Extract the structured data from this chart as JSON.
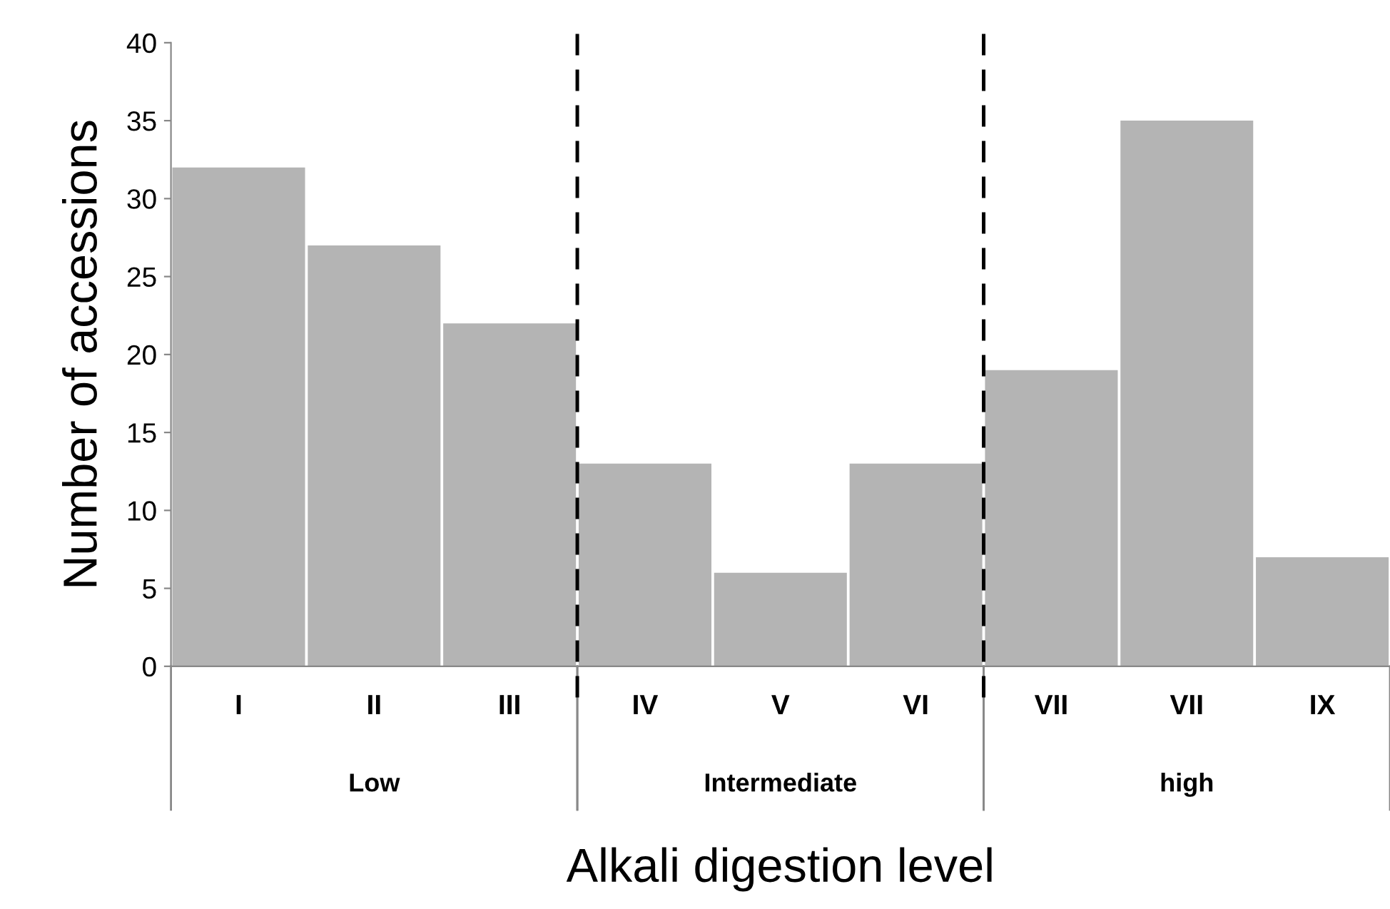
{
  "chart_data": {
    "type": "bar",
    "categories": [
      "I",
      "II",
      "III",
      "IV",
      "V",
      "VI",
      "VII",
      "VII",
      "IX"
    ],
    "values": [
      32,
      27,
      22,
      13,
      6,
      13,
      19,
      35,
      7
    ],
    "color": "#b4b4b4",
    "xlabel": "Alkali digestion level",
    "ylabel": "Number of accessions",
    "ylim": [
      0,
      40
    ],
    "yticks": [
      0,
      5,
      10,
      15,
      20,
      25,
      30,
      35,
      40
    ],
    "annotations": [
      "Low",
      "Intermediate",
      "high"
    ]
  }
}
